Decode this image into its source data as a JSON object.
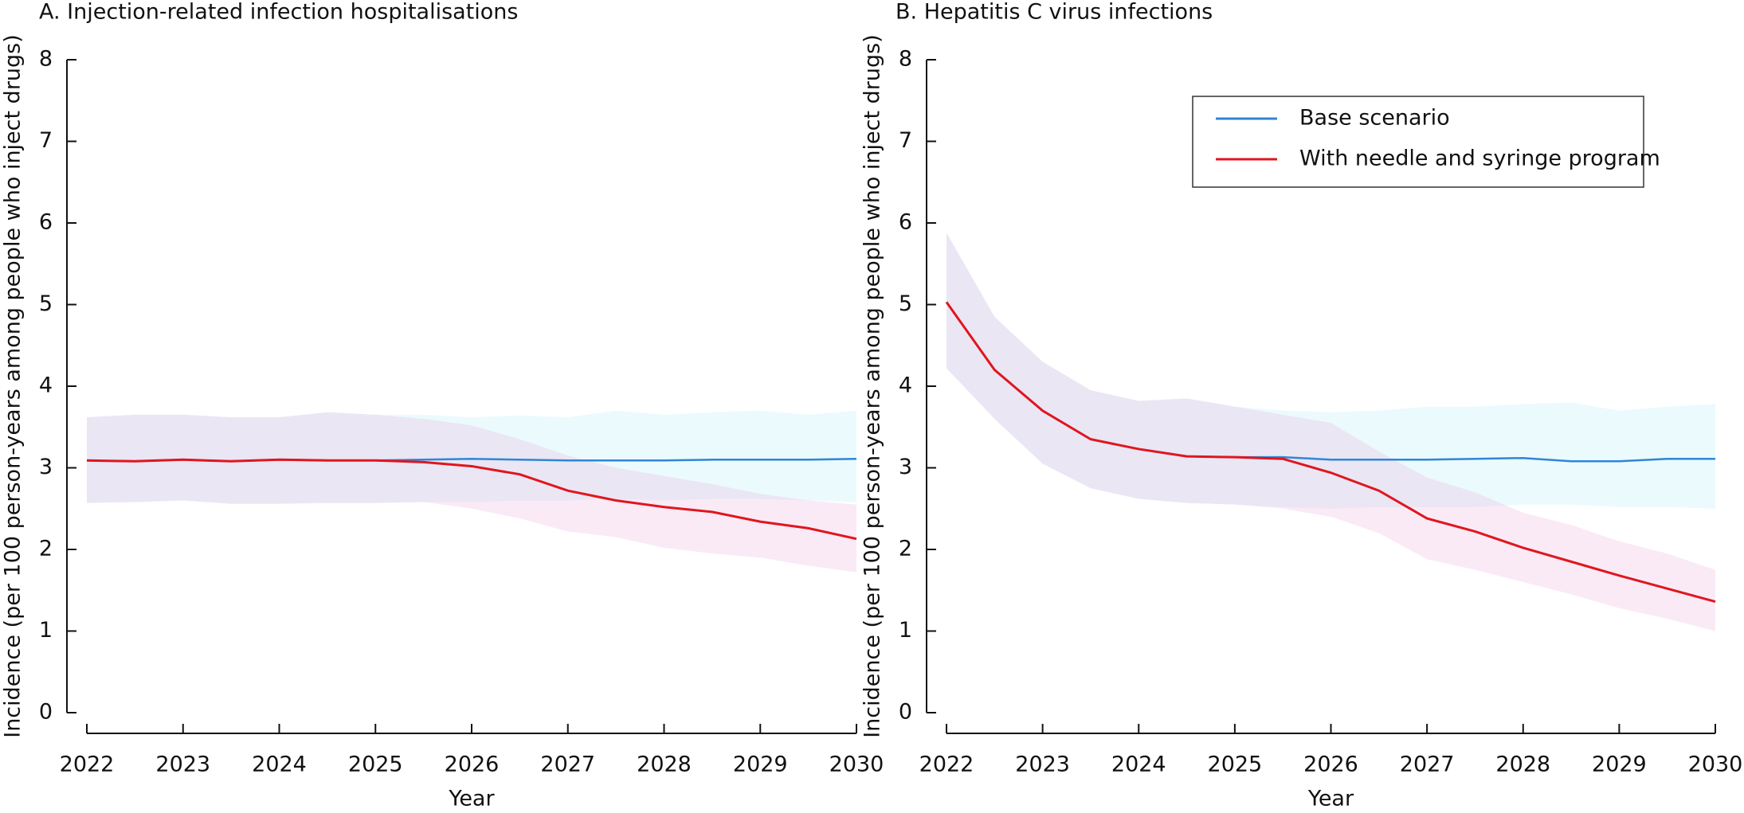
{
  "chart_data": [
    {
      "type": "line",
      "title": "A. Injection-related infection hospitalisations",
      "x_label": "Year",
      "y_label": "Incidence (per 100 person-years among people who inject drugs)",
      "x": [
        2022,
        2022.5,
        2023,
        2023.5,
        2024,
        2024.5,
        2025,
        2025.5,
        2026,
        2026.5,
        2027,
        2027.5,
        2028,
        2028.5,
        2029,
        2029.5,
        2030
      ],
      "xlim": [
        2022,
        2030
      ],
      "xticks": [
        2022,
        2023,
        2024,
        2025,
        2026,
        2027,
        2028,
        2029,
        2030
      ],
      "ylim": [
        0,
        8
      ],
      "yticks": [
        0,
        1,
        2,
        3,
        4,
        5,
        6,
        7,
        8
      ],
      "series": [
        {
          "color": "#2f86d6",
          "band_color": "#a6e6f5",
          "values": [
            3.09,
            3.08,
            3.1,
            3.08,
            3.1,
            3.09,
            3.09,
            3.1,
            3.11,
            3.1,
            3.09,
            3.09,
            3.09,
            3.1,
            3.1,
            3.1,
            3.11
          ],
          "lower": [
            2.57,
            2.58,
            2.6,
            2.56,
            2.56,
            2.57,
            2.57,
            2.58,
            2.58,
            2.6,
            2.6,
            2.62,
            2.6,
            2.62,
            2.62,
            2.6,
            2.58
          ],
          "upper": [
            3.62,
            3.65,
            3.65,
            3.62,
            3.62,
            3.68,
            3.65,
            3.65,
            3.62,
            3.64,
            3.62,
            3.7,
            3.65,
            3.68,
            3.7,
            3.65,
            3.7
          ]
        },
        {
          "color": "#e0161e",
          "band_color": "#e9a0d6",
          "values": [
            3.09,
            3.08,
            3.1,
            3.08,
            3.1,
            3.09,
            3.09,
            3.07,
            3.02,
            2.92,
            2.72,
            2.6,
            2.52,
            2.46,
            2.34,
            2.26,
            2.13
          ],
          "lower": [
            2.57,
            2.58,
            2.6,
            2.56,
            2.56,
            2.57,
            2.57,
            2.58,
            2.5,
            2.38,
            2.22,
            2.15,
            2.02,
            1.95,
            1.9,
            1.8,
            1.72
          ],
          "upper": [
            3.62,
            3.65,
            3.65,
            3.62,
            3.62,
            3.68,
            3.65,
            3.6,
            3.52,
            3.35,
            3.15,
            3.0,
            2.9,
            2.8,
            2.68,
            2.6,
            2.55
          ]
        }
      ]
    },
    {
      "type": "line",
      "title": "B. Hepatitis C virus infections",
      "x_label": "Year",
      "y_label": "Incidence (per 100 person-years among people who inject drugs)",
      "x": [
        2022,
        2022.5,
        2023,
        2023.5,
        2024,
        2024.5,
        2025,
        2025.5,
        2026,
        2026.5,
        2027,
        2027.5,
        2028,
        2028.5,
        2029,
        2029.5,
        2030
      ],
      "xlim": [
        2022,
        2030
      ],
      "xticks": [
        2022,
        2023,
        2024,
        2025,
        2026,
        2027,
        2028,
        2029,
        2030
      ],
      "ylim": [
        0,
        8
      ],
      "yticks": [
        0,
        1,
        2,
        3,
        4,
        5,
        6,
        7,
        8
      ],
      "legend": "upper right",
      "series": [
        {
          "name": "Base scenario",
          "color": "#2f86d6",
          "band_color": "#a6e6f5",
          "values": [
            5.03,
            4.2,
            3.7,
            3.35,
            3.23,
            3.14,
            3.13,
            3.13,
            3.1,
            3.1,
            3.1,
            3.11,
            3.12,
            3.08,
            3.08,
            3.11,
            3.11
          ],
          "lower": [
            4.22,
            3.6,
            3.05,
            2.75,
            2.62,
            2.57,
            2.55,
            2.52,
            2.5,
            2.52,
            2.52,
            2.52,
            2.55,
            2.55,
            2.52,
            2.52,
            2.5
          ],
          "upper": [
            5.88,
            4.85,
            4.3,
            3.95,
            3.82,
            3.85,
            3.75,
            3.7,
            3.68,
            3.7,
            3.75,
            3.75,
            3.78,
            3.8,
            3.7,
            3.75,
            3.78
          ]
        },
        {
          "name": "With needle and syringe program",
          "color": "#e0161e",
          "band_color": "#e9a0d6",
          "values": [
            5.03,
            4.2,
            3.7,
            3.35,
            3.23,
            3.14,
            3.13,
            3.11,
            2.94,
            2.72,
            2.38,
            2.22,
            2.02,
            1.85,
            1.68,
            1.52,
            1.36
          ],
          "lower": [
            4.22,
            3.6,
            3.05,
            2.75,
            2.62,
            2.57,
            2.55,
            2.5,
            2.4,
            2.2,
            1.88,
            1.75,
            1.6,
            1.45,
            1.28,
            1.15,
            1.0
          ],
          "upper": [
            5.88,
            4.85,
            4.3,
            3.95,
            3.82,
            3.85,
            3.75,
            3.65,
            3.55,
            3.2,
            2.88,
            2.7,
            2.45,
            2.3,
            2.1,
            1.95,
            1.75
          ]
        }
      ]
    }
  ]
}
